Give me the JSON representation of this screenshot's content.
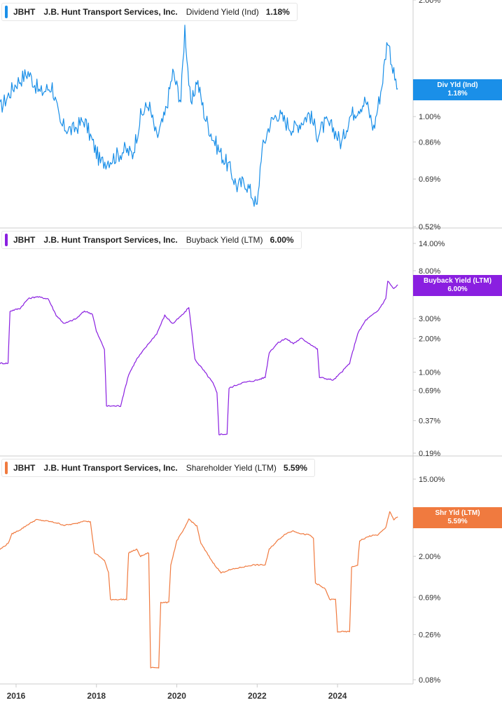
{
  "panels": [
    {
      "ticker": "JBHT",
      "company": "J.B. Hunt Transport Services, Inc.",
      "metric": "Dividend Yield (Ind)",
      "value": "1.18%",
      "color": "#1a8fe8",
      "badge_label": "Div Yld (Ind)",
      "badge_value": "1.18%"
    },
    {
      "ticker": "JBHT",
      "company": "J.B. Hunt Transport Services, Inc.",
      "metric": "Buyback Yield (LTM)",
      "value": "6.00%",
      "color": "#8a1fe0",
      "badge_label": "Buyback Yield (LTM)",
      "badge_value": "6.00%"
    },
    {
      "ticker": "JBHT",
      "company": "J.B. Hunt Transport Services, Inc.",
      "metric": "Shareholder Yield (LTM)",
      "value": "5.59%",
      "color": "#f07a3f",
      "badge_label": "Shr Yld (LTM)",
      "badge_value": "5.59%"
    }
  ],
  "chart_data": [
    {
      "type": "line",
      "y_scale": "log",
      "ylim": [
        0.52,
        2.0
      ],
      "y_ticks": [
        "2.00%",
        "1.00%",
        "0.86%",
        "0.69%",
        "0.52%"
      ],
      "x_ticks": [
        "2016",
        "2018",
        "2020",
        "2022",
        "2024"
      ],
      "series": [
        {
          "name": "Dividend Yield (Ind)",
          "points": [
            [
              2015.6,
              1.05
            ],
            [
              2016.0,
              1.22
            ],
            [
              2016.3,
              1.3
            ],
            [
              2016.6,
              1.15
            ],
            [
              2016.9,
              1.2
            ],
            [
              2017.1,
              0.95
            ],
            [
              2017.4,
              0.92
            ],
            [
              2017.7,
              0.98
            ],
            [
              2017.9,
              0.86
            ],
            [
              2018.1,
              0.76
            ],
            [
              2018.4,
              0.78
            ],
            [
              2018.7,
              0.82
            ],
            [
              2018.9,
              0.8
            ],
            [
              2019.1,
              1.0
            ],
            [
              2019.3,
              1.08
            ],
            [
              2019.5,
              0.88
            ],
            [
              2019.7,
              1.0
            ],
            [
              2019.9,
              1.3
            ],
            [
              2020.1,
              1.1
            ],
            [
              2020.2,
              1.7
            ],
            [
              2020.35,
              1.05
            ],
            [
              2020.5,
              1.25
            ],
            [
              2020.7,
              1.0
            ],
            [
              2020.9,
              0.88
            ],
            [
              2021.1,
              0.8
            ],
            [
              2021.3,
              0.74
            ],
            [
              2021.5,
              0.66
            ],
            [
              2021.7,
              0.68
            ],
            [
              2021.9,
              0.62
            ],
            [
              2022.0,
              0.58
            ],
            [
              2022.1,
              0.8
            ],
            [
              2022.3,
              0.95
            ],
            [
              2022.5,
              1.02
            ],
            [
              2022.7,
              0.97
            ],
            [
              2022.9,
              0.93
            ],
            [
              2023.1,
              0.97
            ],
            [
              2023.3,
              1.02
            ],
            [
              2023.5,
              0.9
            ],
            [
              2023.7,
              0.96
            ],
            [
              2023.9,
              0.93
            ],
            [
              2024.1,
              0.85
            ],
            [
              2024.3,
              1.0
            ],
            [
              2024.5,
              1.05
            ],
            [
              2024.7,
              1.1
            ],
            [
              2024.9,
              0.93
            ],
            [
              2025.1,
              1.2
            ],
            [
              2025.25,
              1.6
            ],
            [
              2025.4,
              1.28
            ],
            [
              2025.5,
              1.18
            ]
          ]
        }
      ]
    },
    {
      "type": "line",
      "y_scale": "log",
      "ylim": [
        0.19,
        14.0
      ],
      "y_ticks": [
        "14.00%",
        "8.00%",
        "3.00%",
        "2.00%",
        "1.00%",
        "0.69%",
        "0.37%",
        "0.19%"
      ],
      "x_ticks": [
        "2016",
        "2018",
        "2020",
        "2022",
        "2024"
      ],
      "series": [
        {
          "name": "Buyback Yield (LTM)",
          "points": [
            [
              2015.6,
              1.2
            ],
            [
              2015.8,
              1.2
            ],
            [
              2015.85,
              3.5
            ],
            [
              2016.1,
              3.7
            ],
            [
              2016.3,
              4.5
            ],
            [
              2016.5,
              4.7
            ],
            [
              2016.8,
              4.5
            ],
            [
              2017.0,
              3.2
            ],
            [
              2017.2,
              2.7
            ],
            [
              2017.5,
              3.0
            ],
            [
              2017.7,
              3.5
            ],
            [
              2017.9,
              3.3
            ],
            [
              2018.0,
              2.3
            ],
            [
              2018.2,
              1.6
            ],
            [
              2018.25,
              0.5
            ],
            [
              2018.6,
              0.5
            ],
            [
              2018.8,
              0.95
            ],
            [
              2019.0,
              1.3
            ],
            [
              2019.3,
              1.8
            ],
            [
              2019.5,
              2.2
            ],
            [
              2019.7,
              3.2
            ],
            [
              2019.9,
              2.7
            ],
            [
              2020.2,
              3.4
            ],
            [
              2020.3,
              3.8
            ],
            [
              2020.45,
              1.3
            ],
            [
              2020.7,
              1.0
            ],
            [
              2020.9,
              0.8
            ],
            [
              2021.0,
              0.65
            ],
            [
              2021.05,
              0.28
            ],
            [
              2021.25,
              0.28
            ],
            [
              2021.3,
              0.72
            ],
            [
              2021.6,
              0.8
            ],
            [
              2022.0,
              0.85
            ],
            [
              2022.2,
              0.9
            ],
            [
              2022.3,
              1.5
            ],
            [
              2022.5,
              1.8
            ],
            [
              2022.7,
              2.0
            ],
            [
              2022.9,
              1.8
            ],
            [
              2023.1,
              2.0
            ],
            [
              2023.3,
              1.8
            ],
            [
              2023.5,
              1.6
            ],
            [
              2023.55,
              0.9
            ],
            [
              2023.9,
              0.85
            ],
            [
              2024.1,
              1.0
            ],
            [
              2024.3,
              1.2
            ],
            [
              2024.5,
              2.2
            ],
            [
              2024.7,
              2.9
            ],
            [
              2025.0,
              3.5
            ],
            [
              2025.2,
              4.5
            ],
            [
              2025.25,
              6.5
            ],
            [
              2025.4,
              5.5
            ],
            [
              2025.5,
              6.0
            ]
          ]
        }
      ]
    },
    {
      "type": "line",
      "y_scale": "log",
      "ylim": [
        0.08,
        15.0
      ],
      "y_ticks": [
        "15.00%",
        "2.00%",
        "0.69%",
        "0.26%",
        "0.08%"
      ],
      "x_ticks": [
        "2016",
        "2018",
        "2020",
        "2022",
        "2024"
      ],
      "series": [
        {
          "name": "Shareholder Yield (LTM)",
          "points": [
            [
              2015.6,
              2.4
            ],
            [
              2015.8,
              2.8
            ],
            [
              2015.9,
              3.6
            ],
            [
              2016.1,
              4.0
            ],
            [
              2016.3,
              4.6
            ],
            [
              2016.5,
              5.2
            ],
            [
              2016.8,
              5.0
            ],
            [
              2017.0,
              4.8
            ],
            [
              2017.2,
              4.5
            ],
            [
              2017.5,
              4.7
            ],
            [
              2017.7,
              5.1
            ],
            [
              2017.85,
              4.9
            ],
            [
              2017.95,
              2.2
            ],
            [
              2018.2,
              1.8
            ],
            [
              2018.3,
              1.3
            ],
            [
              2018.35,
              0.65
            ],
            [
              2018.75,
              0.65
            ],
            [
              2018.8,
              2.2
            ],
            [
              2019.0,
              2.4
            ],
            [
              2019.1,
              2.0
            ],
            [
              2019.3,
              2.2
            ],
            [
              2019.35,
              0.11
            ],
            [
              2019.55,
              0.11
            ],
            [
              2019.6,
              0.6
            ],
            [
              2019.8,
              0.6
            ],
            [
              2019.85,
              1.6
            ],
            [
              2020.0,
              3.0
            ],
            [
              2020.2,
              4.2
            ],
            [
              2020.3,
              5.3
            ],
            [
              2020.5,
              4.4
            ],
            [
              2020.6,
              2.8
            ],
            [
              2020.8,
              2.0
            ],
            [
              2020.9,
              1.7
            ],
            [
              2021.1,
              1.3
            ],
            [
              2021.3,
              1.4
            ],
            [
              2021.6,
              1.5
            ],
            [
              2021.9,
              1.6
            ],
            [
              2022.2,
              1.6
            ],
            [
              2022.3,
              2.4
            ],
            [
              2022.5,
              3.0
            ],
            [
              2022.7,
              3.6
            ],
            [
              2022.9,
              3.9
            ],
            [
              2023.1,
              3.6
            ],
            [
              2023.3,
              3.5
            ],
            [
              2023.4,
              3.2
            ],
            [
              2023.45,
              1.0
            ],
            [
              2023.7,
              0.85
            ],
            [
              2023.8,
              0.65
            ],
            [
              2023.95,
              0.65
            ],
            [
              2024.0,
              0.28
            ],
            [
              2024.3,
              0.28
            ],
            [
              2024.35,
              1.5
            ],
            [
              2024.5,
              1.6
            ],
            [
              2024.55,
              3.0
            ],
            [
              2024.8,
              3.4
            ],
            [
              2025.0,
              3.5
            ],
            [
              2025.2,
              4.2
            ],
            [
              2025.3,
              6.5
            ],
            [
              2025.4,
              5.2
            ],
            [
              2025.5,
              5.6
            ]
          ]
        }
      ]
    }
  ]
}
